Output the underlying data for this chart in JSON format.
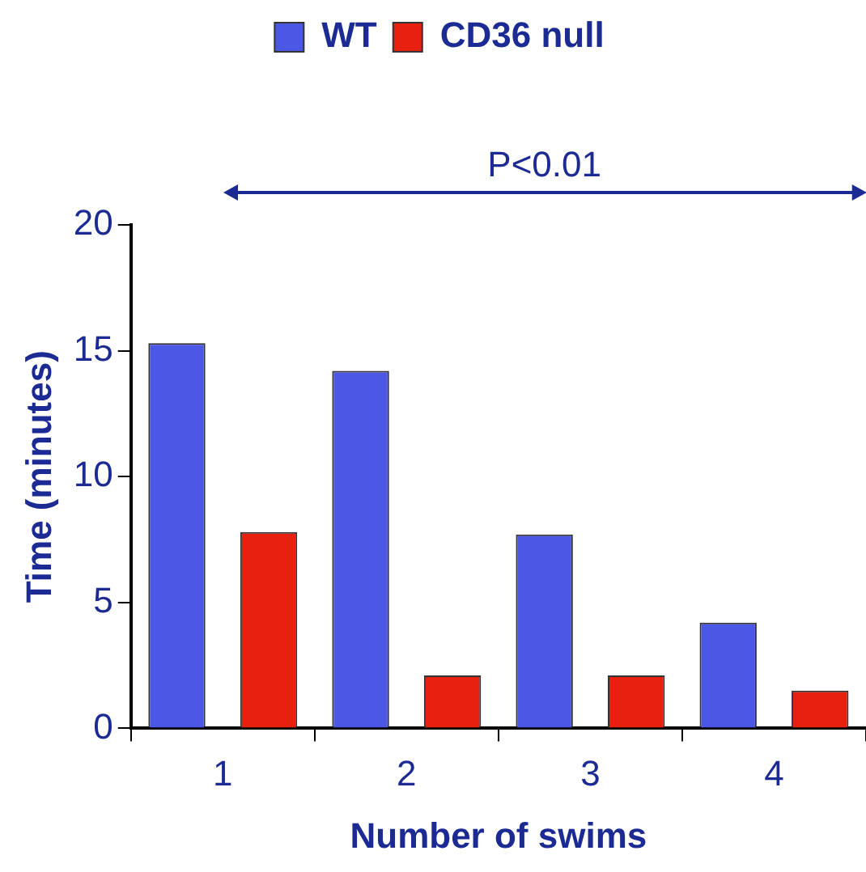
{
  "chart_data": {
    "type": "bar",
    "categories": [
      "1",
      "2",
      "3",
      "4"
    ],
    "series": [
      {
        "name": "WT",
        "color": "#4b58e6",
        "values": [
          15.3,
          14.2,
          7.7,
          4.2
        ]
      },
      {
        "name": "CD36 null",
        "color": "#e8200e",
        "values": [
          7.8,
          2.1,
          2.1,
          1.5
        ]
      }
    ],
    "xlabel": "Number of swims",
    "ylabel": "Time (minutes)",
    "ylim": [
      0,
      20
    ],
    "yticks": [
      0,
      5,
      10,
      15,
      20
    ],
    "legend": "top",
    "annotations": [
      "P<0.01"
    ]
  }
}
